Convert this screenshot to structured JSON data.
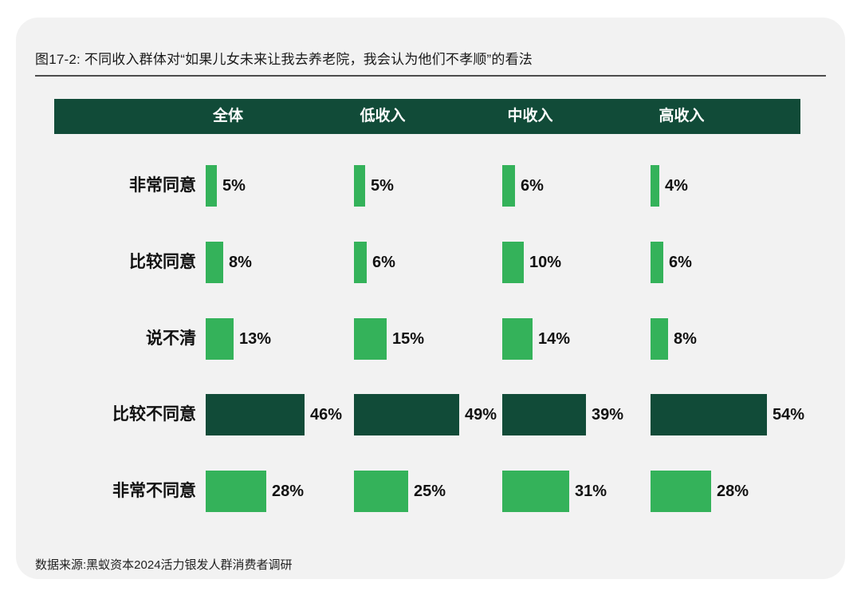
{
  "figure": {
    "title": "图17-2: 不同收入群体对“如果儿女未来让我去养老院，我会认为他们不孝顺”的看法",
    "source": "数据来源:黑蚁资本2024活力银发人群消费者调研"
  },
  "chart_data": {
    "type": "bar",
    "orientation": "horizontal",
    "title": "图17-2: 不同收入群体对“如果儿女未来让我去养老院，我会认为他们不孝顺”的看法",
    "unit": "%",
    "categories": [
      "非常同意",
      "比较同意",
      "说不清",
      "比较不同意",
      "非常不同意"
    ],
    "series": [
      {
        "name": "全体",
        "values": [
          5,
          8,
          13,
          46,
          28
        ]
      },
      {
        "name": "低收入",
        "values": [
          5,
          6,
          15,
          49,
          25
        ]
      },
      {
        "name": "中收入",
        "values": [
          6,
          10,
          14,
          39,
          31
        ]
      },
      {
        "name": "高收入",
        "values": [
          4,
          6,
          8,
          54,
          28
        ]
      }
    ],
    "emphasis_category": "比较不同意",
    "colors": {
      "bar_light_green": "#34b25a",
      "bar_dark_green": "#114b38",
      "header_background": "#114b38",
      "header_text": "#ffffff",
      "panel_background": "#f2f2f2",
      "value_text": "#111111"
    },
    "layout_hints": {
      "legend_position": "none",
      "grid": false,
      "value_labels": "right-of-bar",
      "column_headers_on_dark_band": true
    }
  }
}
